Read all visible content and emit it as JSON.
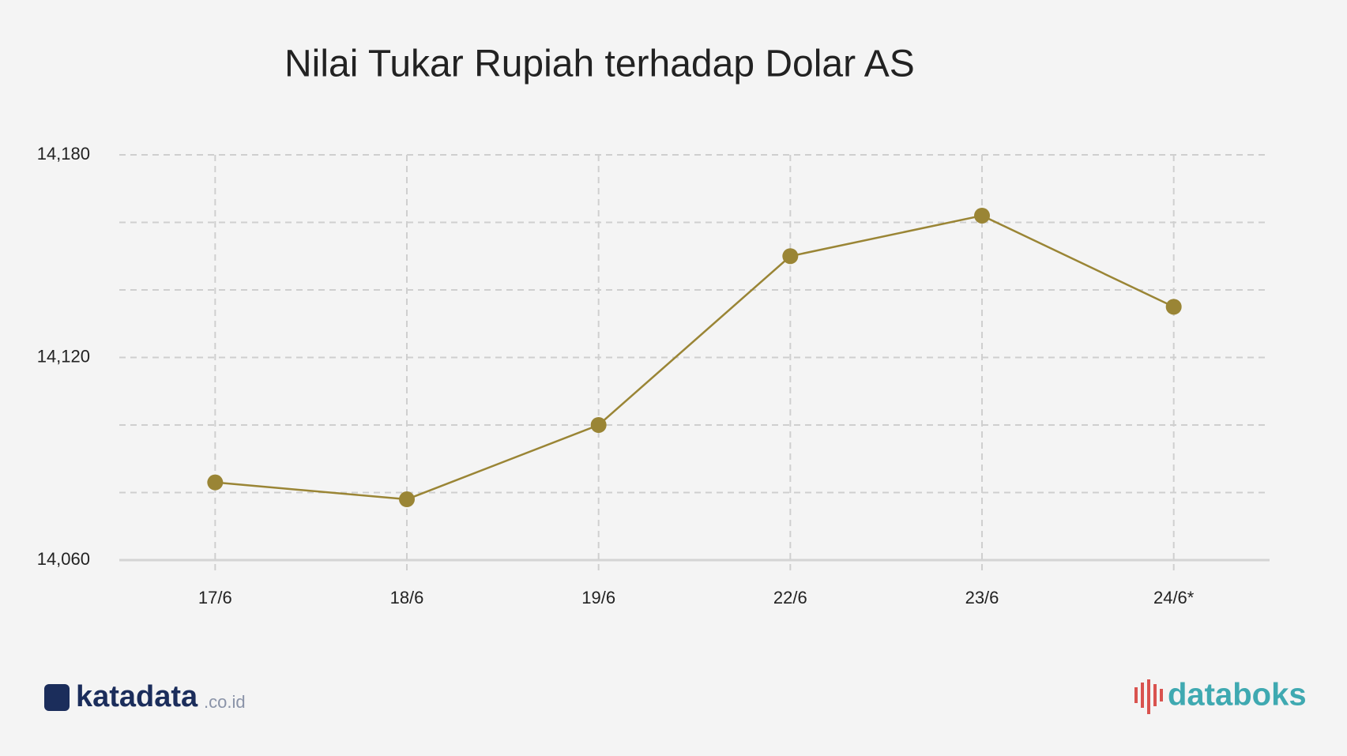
{
  "chart_data": {
    "type": "line",
    "title": "Nilai Tukar Rupiah terhadap Dolar AS",
    "categories": [
      "17/6",
      "18/6",
      "19/6",
      "22/6",
      "23/6",
      "24/6*"
    ],
    "series": [
      {
        "name": "Rupiah",
        "color": "#9a8535",
        "values": [
          14083,
          14078,
          14100,
          14150,
          14162,
          14135
        ]
      }
    ],
    "ylim": [
      14060,
      14180
    ],
    "yticks": [
      {
        "value": 14060,
        "label": "14,060"
      },
      {
        "value": 14120,
        "label": "14,120"
      },
      {
        "value": 14180,
        "label": "14,180"
      }
    ],
    "minor_yticks": [
      14080,
      14100,
      14140,
      14160
    ],
    "grid": true
  },
  "footer": {
    "left_logo": "katadata",
    "left_logo_suffix": ".co.id",
    "right_logo": "databoks"
  }
}
